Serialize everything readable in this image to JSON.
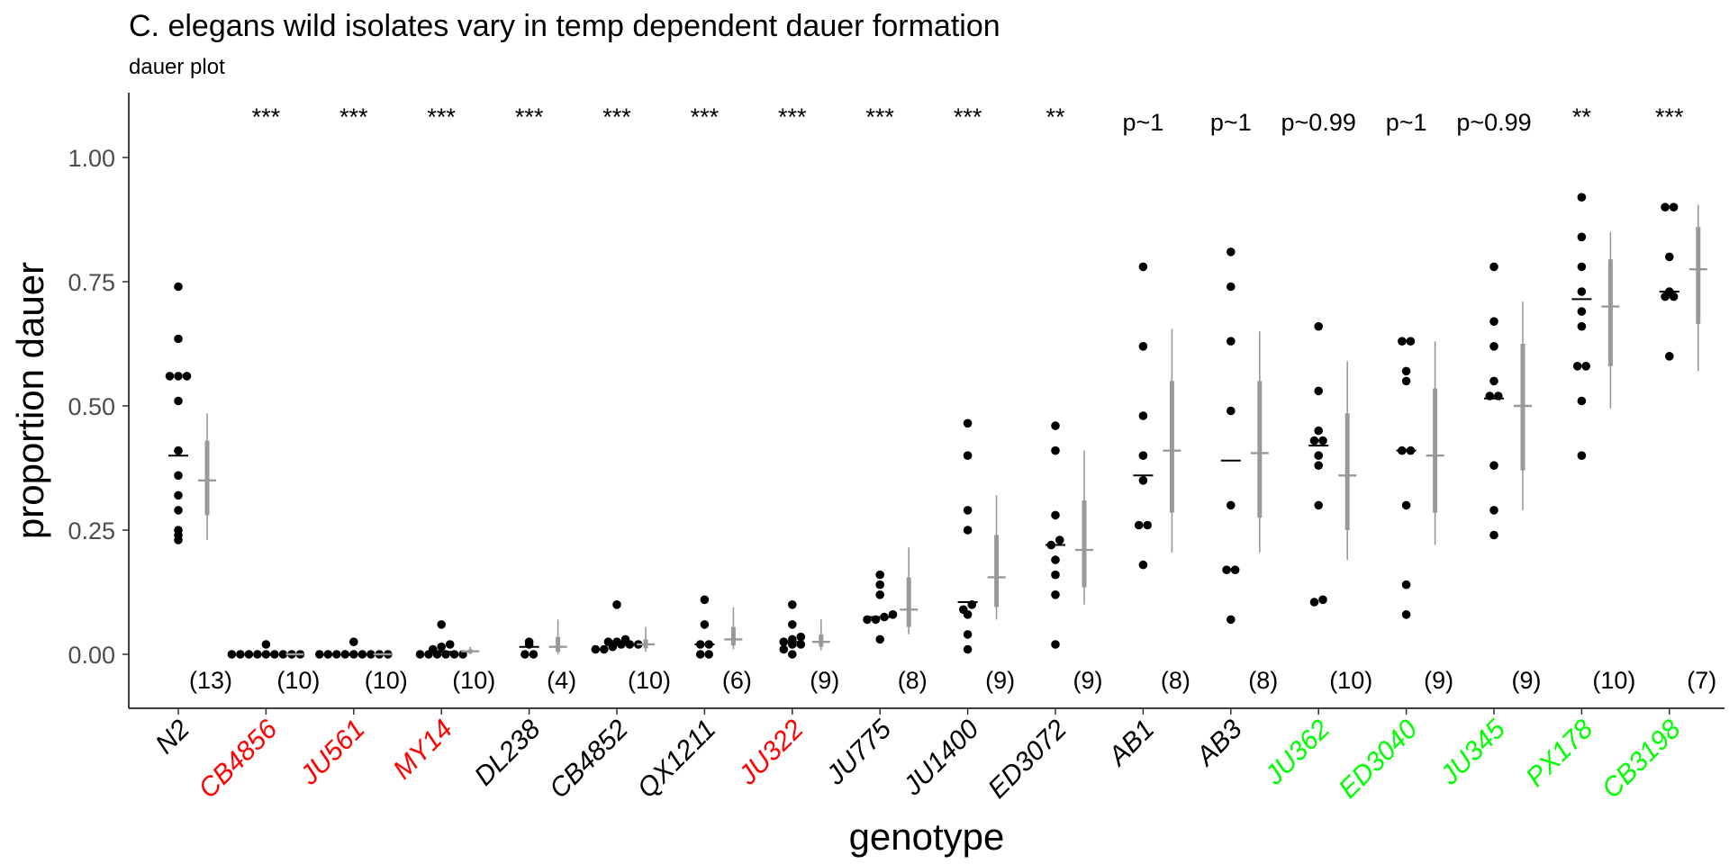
{
  "colors": {
    "default": "#000000",
    "red": "#ff0000",
    "green": "#00ff00",
    "summary": "#999999",
    "axis_text": "#4d4d4d"
  },
  "chart_data": {
    "type": "scatter",
    "title": "C. elegans wild isolates vary in temp dependent dauer formation",
    "subtitle": "dauer plot",
    "xlabel": "genotype",
    "ylabel": "proportion dauer",
    "ylim": [
      -0.1,
      1.13
    ],
    "yticks": [
      "0.00",
      "0.25",
      "0.50",
      "0.75",
      "1.00"
    ],
    "grid": false,
    "categories": [
      "N2",
      "CB4856",
      "JU561",
      "MY14",
      "DL238",
      "CB4852",
      "QX1211",
      "JU322",
      "JU775",
      "JU1400",
      "ED3072",
      "AB1",
      "AB3",
      "JU362",
      "ED3040",
      "JU345",
      "PX178",
      "CB3198"
    ],
    "label_colors": [
      "default",
      "red",
      "red",
      "red",
      "default",
      "default",
      "default",
      "red",
      "default",
      "default",
      "default",
      "default",
      "default",
      "green",
      "green",
      "green",
      "green",
      "green"
    ],
    "significance": [
      "",
      "***",
      "***",
      "***",
      "***",
      "***",
      "***",
      "***",
      "***",
      "***",
      "**",
      "p~1",
      "p~1",
      "p~0.99",
      "p~1",
      "p~0.99",
      "**",
      "***"
    ],
    "n_labels": [
      "(13)",
      "(10)",
      "(10)",
      "(10)",
      "(4)",
      "(10)",
      "(6)",
      "(9)",
      "(8)",
      "(9)",
      "(9)",
      "(8)",
      "(8)",
      "(10)",
      "(9)",
      "(9)",
      "(10)",
      "(7)"
    ],
    "points": [
      [
        0.74,
        0.635,
        0.56,
        0.56,
        0.56,
        0.51,
        0.41,
        0.36,
        0.32,
        0.29,
        0.25,
        0.24,
        0.23
      ],
      [
        0,
        0,
        0,
        0,
        0,
        0,
        0,
        0,
        0,
        0.02
      ],
      [
        0,
        0,
        0,
        0,
        0,
        0,
        0,
        0,
        0,
        0.025
      ],
      [
        0,
        0,
        0,
        0,
        0,
        0,
        0.01,
        0.015,
        0.02,
        0.06
      ],
      [
        0.02,
        0.025,
        0,
        0
      ],
      [
        0.01,
        0.01,
        0.015,
        0.02,
        0.02,
        0.02,
        0.025,
        0.025,
        0.03,
        0.1
      ],
      [
        0,
        0,
        0.02,
        0.02,
        0.06,
        0.11
      ],
      [
        0,
        0.01,
        0.02,
        0.02,
        0.025,
        0.03,
        0.035,
        0.06,
        0.1
      ],
      [
        0.03,
        0.07,
        0.07,
        0.075,
        0.08,
        0.12,
        0.14,
        0.16
      ],
      [
        0.01,
        0.04,
        0.08,
        0.09,
        0.1,
        0.25,
        0.29,
        0.4,
        0.465
      ],
      [
        0.02,
        0.12,
        0.16,
        0.19,
        0.22,
        0.23,
        0.28,
        0.41,
        0.46
      ],
      [
        0.18,
        0.26,
        0.26,
        0.35,
        0.4,
        0.48,
        0.62,
        0.78
      ],
      [
        0.07,
        0.17,
        0.17,
        0.3,
        0.49,
        0.63,
        0.74,
        0.81
      ],
      [
        0.105,
        0.11,
        0.3,
        0.38,
        0.4,
        0.43,
        0.43,
        0.45,
        0.53,
        0.66
      ],
      [
        0.08,
        0.14,
        0.3,
        0.41,
        0.41,
        0.55,
        0.57,
        0.63,
        0.63
      ],
      [
        0.24,
        0.29,
        0.38,
        0.52,
        0.52,
        0.55,
        0.62,
        0.67,
        0.78
      ],
      [
        0.4,
        0.51,
        0.58,
        0.58,
        0.66,
        0.69,
        0.73,
        0.78,
        0.84,
        0.92
      ],
      [
        0.6,
        0.72,
        0.72,
        0.73,
        0.8,
        0.9,
        0.9
      ]
    ],
    "medians": [
      0.4,
      0.0,
      0.0,
      0.005,
      0.015,
      0.02,
      0.02,
      0.025,
      0.075,
      0.105,
      0.22,
      0.36,
      0.39,
      0.42,
      0.41,
      0.515,
      0.715,
      0.73
    ],
    "estimates": [
      {
        "est": 0.35,
        "lo95": 0.23,
        "hi95": 0.485,
        "lo50": 0.28,
        "hi50": 0.43
      },
      {
        "est": 0.0,
        "lo95": 0.0,
        "hi95": 0.0,
        "lo50": 0.0,
        "hi50": 0.0
      },
      {
        "est": 0.0,
        "lo95": 0.0,
        "hi95": 0.0,
        "lo50": 0.0,
        "hi50": 0.0
      },
      {
        "est": 0.006,
        "lo95": 0.0,
        "hi95": 0.015,
        "lo50": 0.002,
        "hi50": 0.01
      },
      {
        "est": 0.015,
        "lo95": 0.0,
        "hi95": 0.07,
        "lo50": 0.005,
        "hi50": 0.035
      },
      {
        "est": 0.02,
        "lo95": 0.005,
        "hi95": 0.055,
        "lo50": 0.012,
        "hi50": 0.03
      },
      {
        "est": 0.03,
        "lo95": 0.01,
        "hi95": 0.095,
        "lo50": 0.018,
        "hi50": 0.055
      },
      {
        "est": 0.025,
        "lo95": 0.008,
        "hi95": 0.07,
        "lo50": 0.015,
        "hi50": 0.04
      },
      {
        "est": 0.09,
        "lo95": 0.04,
        "hi95": 0.215,
        "lo50": 0.055,
        "hi50": 0.155
      },
      {
        "est": 0.155,
        "lo95": 0.07,
        "hi95": 0.32,
        "lo50": 0.095,
        "hi50": 0.24
      },
      {
        "est": 0.21,
        "lo95": 0.1,
        "hi95": 0.41,
        "lo50": 0.135,
        "hi50": 0.31
      },
      {
        "est": 0.41,
        "lo95": 0.205,
        "hi95": 0.655,
        "lo50": 0.285,
        "hi50": 0.55
      },
      {
        "est": 0.405,
        "lo95": 0.205,
        "hi95": 0.65,
        "lo50": 0.275,
        "hi50": 0.55
      },
      {
        "est": 0.36,
        "lo95": 0.19,
        "hi95": 0.59,
        "lo50": 0.25,
        "hi50": 0.485
      },
      {
        "est": 0.4,
        "lo95": 0.22,
        "hi95": 0.63,
        "lo50": 0.285,
        "hi50": 0.535
      },
      {
        "est": 0.5,
        "lo95": 0.29,
        "hi95": 0.71,
        "lo50": 0.37,
        "hi50": 0.625
      },
      {
        "est": 0.7,
        "lo95": 0.495,
        "hi95": 0.85,
        "lo50": 0.58,
        "hi50": 0.795
      },
      {
        "est": 0.775,
        "lo95": 0.57,
        "hi95": 0.905,
        "lo50": 0.665,
        "hi50": 0.86
      }
    ]
  }
}
